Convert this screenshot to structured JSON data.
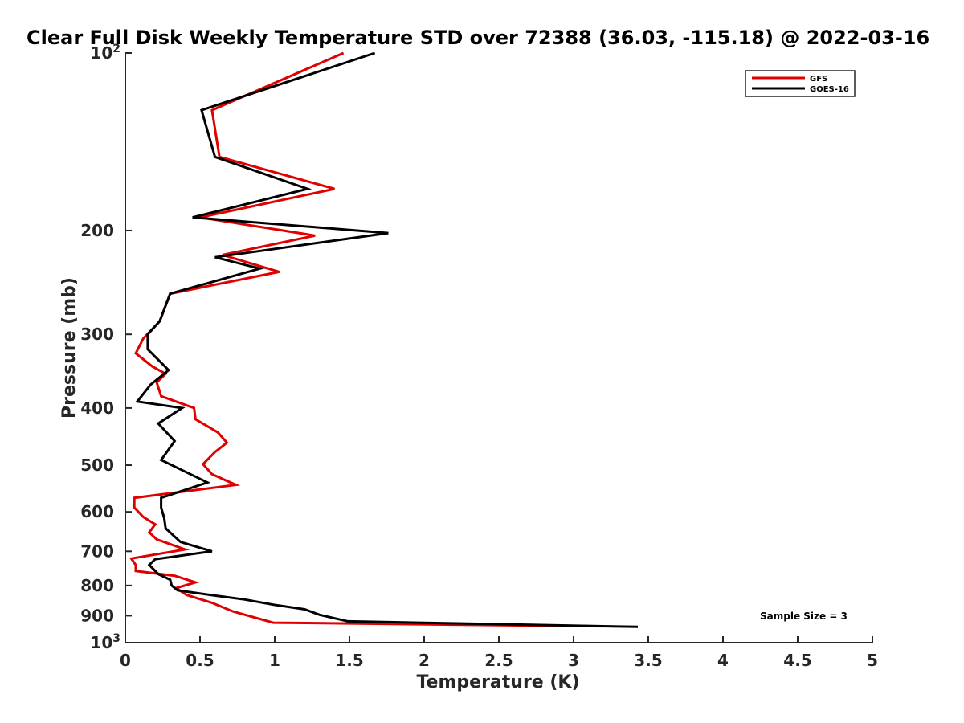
{
  "chart_data": {
    "type": "line",
    "title": "Clear Full Disk Weekly Temperature STD over 72388 (36.03, -115.18) @ 2022-03-16",
    "xlabel": "Temperature (K)",
    "ylabel": "Pressure (mb)",
    "xlim": [
      0,
      5
    ],
    "ylim": [
      100,
      1000
    ],
    "y_scale": "log",
    "y_reversed": true,
    "x_ticks": [
      "0",
      "0.5",
      "1",
      "1.5",
      "2",
      "2.5",
      "3",
      "3.5",
      "4",
      "4.5",
      "5"
    ],
    "y_ticks": [
      {
        "value": 100,
        "label": "10",
        "sup": "2"
      },
      {
        "value": 200,
        "label": "200",
        "sup": ""
      },
      {
        "value": 300,
        "label": "300",
        "sup": ""
      },
      {
        "value": 400,
        "label": "400",
        "sup": ""
      },
      {
        "value": 500,
        "label": "500",
        "sup": ""
      },
      {
        "value": 600,
        "label": "600",
        "sup": ""
      },
      {
        "value": 700,
        "label": "700",
        "sup": ""
      },
      {
        "value": 800,
        "label": "800",
        "sup": ""
      },
      {
        "value": 900,
        "label": "900",
        "sup": ""
      },
      {
        "value": 1000,
        "label": "10",
        "sup": "3"
      }
    ],
    "grid": false,
    "legend_position": "top-right",
    "annotation": "Sample Size = 3",
    "series": [
      {
        "name": "GFS",
        "color": "#e00000",
        "points": [
          [
            1.46,
            100
          ],
          [
            0.58,
            125
          ],
          [
            0.63,
            150
          ],
          [
            1.4,
            170
          ],
          [
            0.5,
            190
          ],
          [
            1.27,
            204
          ],
          [
            0.65,
            220
          ],
          [
            1.03,
            235
          ],
          [
            0.3,
            256
          ],
          [
            0.23,
            285
          ],
          [
            0.12,
            305
          ],
          [
            0.07,
            323
          ],
          [
            0.18,
            340
          ],
          [
            0.27,
            350
          ],
          [
            0.21,
            362
          ],
          [
            0.24,
            382
          ],
          [
            0.46,
            400
          ],
          [
            0.47,
            418
          ],
          [
            0.62,
            440
          ],
          [
            0.68,
            458
          ],
          [
            0.6,
            475
          ],
          [
            0.52,
            498
          ],
          [
            0.58,
            518
          ],
          [
            0.74,
            540
          ],
          [
            0.06,
            568
          ],
          [
            0.06,
            590
          ],
          [
            0.12,
            612
          ],
          [
            0.2,
            630
          ],
          [
            0.16,
            650
          ],
          [
            0.21,
            668
          ],
          [
            0.4,
            695
          ],
          [
            0.04,
            720
          ],
          [
            0.07,
            738
          ],
          [
            0.07,
            756
          ],
          [
            0.33,
            770
          ],
          [
            0.47,
            790
          ],
          [
            0.34,
            808
          ],
          [
            0.41,
            830
          ],
          [
            0.58,
            856
          ],
          [
            0.72,
            885
          ],
          [
            0.99,
            925
          ],
          [
            3.2,
            938
          ]
        ]
      },
      {
        "name": "GOES-16",
        "color": "#000000",
        "points": [
          [
            1.67,
            100
          ],
          [
            0.51,
            125
          ],
          [
            0.6,
            150
          ],
          [
            1.22,
            170
          ],
          [
            0.45,
            190
          ],
          [
            1.76,
            202
          ],
          [
            0.6,
            222
          ],
          [
            0.9,
            232
          ],
          [
            0.3,
            256
          ],
          [
            0.23,
            285
          ],
          [
            0.15,
            300
          ],
          [
            0.15,
            318
          ],
          [
            0.29,
            345
          ],
          [
            0.17,
            365
          ],
          [
            0.08,
            390
          ],
          [
            0.38,
            400
          ],
          [
            0.22,
            425
          ],
          [
            0.33,
            455
          ],
          [
            0.24,
            490
          ],
          [
            0.55,
            535
          ],
          [
            0.24,
            568
          ],
          [
            0.24,
            590
          ],
          [
            0.26,
            615
          ],
          [
            0.27,
            640
          ],
          [
            0.37,
            675
          ],
          [
            0.58,
            700
          ],
          [
            0.2,
            722
          ],
          [
            0.16,
            738
          ],
          [
            0.22,
            765
          ],
          [
            0.3,
            782
          ],
          [
            0.31,
            800
          ],
          [
            0.35,
            815
          ],
          [
            0.6,
            832
          ],
          [
            0.8,
            845
          ],
          [
            0.99,
            862
          ],
          [
            1.2,
            878
          ],
          [
            1.3,
            897
          ],
          [
            1.49,
            920
          ],
          [
            3.43,
            940
          ]
        ]
      }
    ]
  }
}
